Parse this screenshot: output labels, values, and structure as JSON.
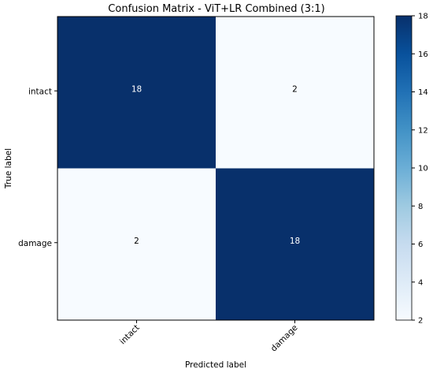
{
  "chart_data": {
    "type": "heatmap",
    "title": "Confusion Matrix - ViT+LR Combined (3:1)",
    "xlabel": "Predicted label",
    "ylabel": "True label",
    "row_labels": [
      "intact",
      "damage"
    ],
    "col_labels": [
      "intact",
      "damage"
    ],
    "values": [
      [
        18,
        2
      ],
      [
        2,
        18
      ]
    ],
    "colormap": "Blues",
    "colorbar": {
      "range": [
        2,
        18
      ],
      "ticks": [
        2,
        4,
        6,
        8,
        10,
        12,
        14,
        16,
        18
      ]
    },
    "colors": {
      "low": "#f7fbff",
      "high": "#08306b",
      "text_on_dark": "#ffffff",
      "text_on_light": "#000000"
    }
  }
}
